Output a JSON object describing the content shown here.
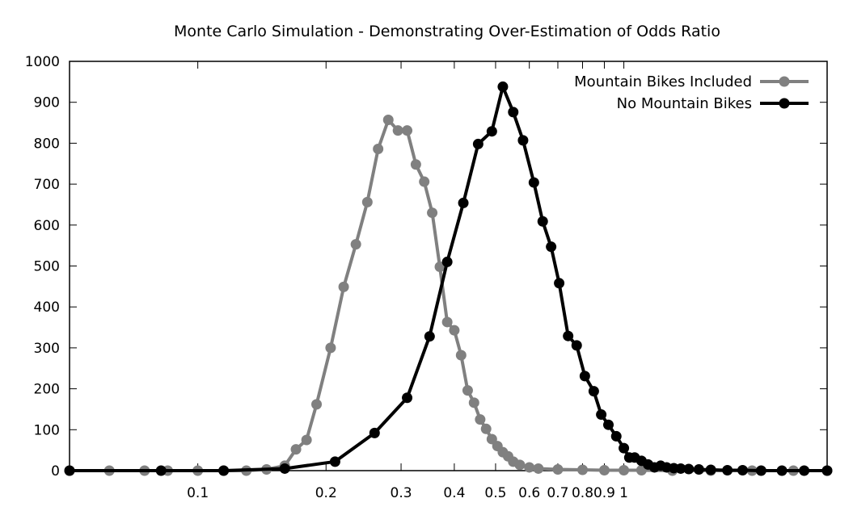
{
  "chart_data": {
    "type": "line",
    "title": "Monte Carlo Simulation - Demonstrating Over-Estimation of Odds Ratio",
    "xlabel": "",
    "ylabel": "",
    "xscale": "log",
    "xlim": [
      0.05,
      3.0
    ],
    "ylim": [
      0,
      1000
    ],
    "yticks": [
      0,
      100,
      200,
      300,
      400,
      500,
      600,
      700,
      800,
      900,
      1000
    ],
    "xticks": [
      0.1,
      0.2,
      0.3,
      0.4,
      0.5,
      0.6,
      0.7,
      0.8,
      0.9,
      1
    ],
    "xtick_labels": [
      "0.1",
      "0.2",
      "0.3",
      "0.4",
      "0.5",
      "0.6",
      "0.7",
      "0.8",
      "0.9",
      "1"
    ],
    "grid": false,
    "legend_position": "top-right",
    "series": [
      {
        "name": "Mountain Bikes Included",
        "color": "#808080",
        "marker": "circle",
        "x": [
          0.05,
          0.062,
          0.075,
          0.085,
          0.1,
          0.115,
          0.13,
          0.145,
          0.16,
          0.17,
          0.18,
          0.19,
          0.205,
          0.22,
          0.235,
          0.25,
          0.265,
          0.28,
          0.295,
          0.31,
          0.325,
          0.34,
          0.355,
          0.37,
          0.385,
          0.4,
          0.415,
          0.43,
          0.445,
          0.46,
          0.475,
          0.49,
          0.505,
          0.52,
          0.535,
          0.55,
          0.57,
          0.6,
          0.63,
          0.7,
          0.8,
          0.9,
          1.0,
          1.1,
          1.3,
          1.6,
          2.0,
          2.5,
          3.0
        ],
        "y": [
          0,
          0,
          0,
          0,
          0,
          0,
          0,
          3,
          12,
          52,
          75,
          162,
          300,
          449,
          553,
          656,
          786,
          857,
          831,
          831,
          748,
          706,
          630,
          498,
          363,
          343,
          282,
          196,
          166,
          125,
          102,
          77,
          60,
          45,
          35,
          22,
          14,
          8,
          5,
          3,
          2,
          1,
          1,
          1,
          0,
          0,
          0,
          0,
          0
        ]
      },
      {
        "name": "No Mountain Bikes",
        "color": "#000000",
        "marker": "circle",
        "x": [
          0.05,
          0.082,
          0.115,
          0.16,
          0.21,
          0.26,
          0.31,
          0.35,
          0.385,
          0.42,
          0.455,
          0.49,
          0.52,
          0.55,
          0.58,
          0.615,
          0.645,
          0.675,
          0.705,
          0.74,
          0.775,
          0.81,
          0.85,
          0.885,
          0.92,
          0.96,
          1.0,
          1.03,
          1.06,
          1.1,
          1.14,
          1.18,
          1.22,
          1.26,
          1.31,
          1.36,
          1.42,
          1.5,
          1.6,
          1.75,
          1.9,
          2.1,
          2.35,
          2.65,
          3.0
        ],
        "y": [
          0,
          0,
          0,
          5,
          22,
          92,
          178,
          328,
          510,
          654,
          798,
          829,
          938,
          876,
          807,
          704,
          609,
          547,
          458,
          329,
          306,
          231,
          194,
          137,
          112,
          84,
          55,
          32,
          32,
          24,
          15,
          8,
          12,
          8,
          6,
          5,
          4,
          3,
          2,
          1,
          1,
          0,
          0,
          0,
          0
        ]
      }
    ]
  }
}
